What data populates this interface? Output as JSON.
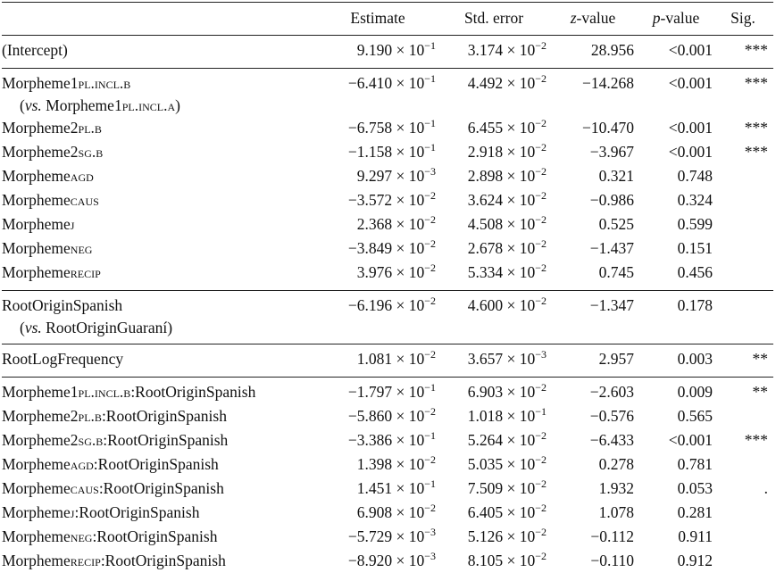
{
  "table": {
    "header": [
      [
        {
          "t": "Estimate"
        }
      ],
      [
        {
          "t": "Std. error"
        }
      ],
      [
        {
          "t": "z",
          "it": true
        },
        {
          "t": "-value"
        }
      ],
      [
        {
          "t": "p",
          "it": true
        },
        {
          "t": "-value"
        }
      ],
      [
        {
          "t": "Sig."
        }
      ]
    ],
    "groups": [
      {
        "rows": [
          {
            "label": [
              {
                "t": "(Intercept)"
              }
            ],
            "est": {
              "b": "9.190 × 10",
              "e": "−1"
            },
            "se": {
              "b": "3.174 × 10",
              "e": "−2"
            },
            "z": "28.956",
            "p": "<0.001",
            "sig": "***"
          }
        ]
      },
      {
        "rows": [
          {
            "label": [
              {
                "t": "Morpheme"
              },
              {
                "t": "1pl.incl.b",
                "sc": true
              }
            ],
            "note": [
              {
                "t": "("
              },
              {
                "t": "vs.",
                "it": true
              },
              {
                "t": " Morpheme"
              },
              {
                "t": "1pl.incl.a",
                "sc": true
              },
              {
                "t": ")"
              }
            ],
            "est": {
              "b": "−6.410 × 10",
              "e": "−1"
            },
            "se": {
              "b": "4.492 × 10",
              "e": "−2"
            },
            "z": "−14.268",
            "p": "<0.001",
            "sig": "***"
          },
          {
            "label": [
              {
                "t": "Morpheme"
              },
              {
                "t": "2pl.b",
                "sc": true
              }
            ],
            "est": {
              "b": "−6.758 × 10",
              "e": "−1"
            },
            "se": {
              "b": "6.455 × 10",
              "e": "−2"
            },
            "z": "−10.470",
            "p": "<0.001",
            "sig": "***"
          },
          {
            "label": [
              {
                "t": "Morpheme"
              },
              {
                "t": "2sg.b",
                "sc": true
              }
            ],
            "est": {
              "b": "−1.158 × 10",
              "e": "−1"
            },
            "se": {
              "b": "2.918 × 10",
              "e": "−2"
            },
            "z": "−3.967",
            "p": "<0.001",
            "sig": "***"
          },
          {
            "label": [
              {
                "t": "Morpheme"
              },
              {
                "t": "agd",
                "sc": true
              }
            ],
            "est": {
              "b": "9.297 × 10",
              "e": "−3"
            },
            "se": {
              "b": "2.898 × 10",
              "e": "−2"
            },
            "z": "0.321",
            "p": "0.748"
          },
          {
            "label": [
              {
                "t": "Morpheme"
              },
              {
                "t": "caus",
                "sc": true
              }
            ],
            "est": {
              "b": "−3.572 × 10",
              "e": "−2"
            },
            "se": {
              "b": "3.624 × 10",
              "e": "−2"
            },
            "z": "−0.986",
            "p": "0.324"
          },
          {
            "label": [
              {
                "t": "Morpheme"
              },
              {
                "t": "j",
                "sc": true
              }
            ],
            "est": {
              "b": "2.368 × 10",
              "e": "−2"
            },
            "se": {
              "b": "4.508 × 10",
              "e": "−2"
            },
            "z": "0.525",
            "p": "0.599"
          },
          {
            "label": [
              {
                "t": "Morpheme"
              },
              {
                "t": "neg",
                "sc": true
              }
            ],
            "est": {
              "b": "−3.849 × 10",
              "e": "−2"
            },
            "se": {
              "b": "2.678 × 10",
              "e": "−2"
            },
            "z": "−1.437",
            "p": "0.151"
          },
          {
            "label": [
              {
                "t": "Morpheme"
              },
              {
                "t": "recip",
                "sc": true
              }
            ],
            "est": {
              "b": "3.976 × 10",
              "e": "−2"
            },
            "se": {
              "b": "5.334 × 10",
              "e": "−2"
            },
            "z": "0.745",
            "p": "0.456"
          }
        ]
      },
      {
        "rows": [
          {
            "label": [
              {
                "t": "RootOriginSpanish"
              }
            ],
            "note": [
              {
                "t": "("
              },
              {
                "t": "vs.",
                "it": true
              },
              {
                "t": " RootOriginGuaraní)"
              }
            ],
            "est": {
              "b": "−6.196 × 10",
              "e": "−2"
            },
            "se": {
              "b": "4.600 × 10",
              "e": "−2"
            },
            "z": "−1.347",
            "p": "0.178"
          }
        ]
      },
      {
        "rows": [
          {
            "label": [
              {
                "t": "RootLogFrequency"
              }
            ],
            "est": {
              "b": "1.081 × 10",
              "e": "−2"
            },
            "se": {
              "b": "3.657 × 10",
              "e": "−3"
            },
            "z": "2.957",
            "p": "0.003",
            "sig": "**"
          }
        ]
      },
      {
        "rows": [
          {
            "label": [
              {
                "t": "Morpheme"
              },
              {
                "t": "1pl.incl.b",
                "sc": true
              },
              {
                "t": ":RootOriginSpanish"
              }
            ],
            "est": {
              "b": "−1.797 × 10",
              "e": "−1"
            },
            "se": {
              "b": "6.903 × 10",
              "e": "−2"
            },
            "z": "−2.603",
            "p": "0.009",
            "sig": "**"
          },
          {
            "label": [
              {
                "t": "Morpheme"
              },
              {
                "t": "2pl.b",
                "sc": true
              },
              {
                "t": ":RootOriginSpanish"
              }
            ],
            "est": {
              "b": "−5.860 × 10",
              "e": "−2"
            },
            "se": {
              "b": "1.018 × 10",
              "e": "−1"
            },
            "z": "−0.576",
            "p": "0.565"
          },
          {
            "label": [
              {
                "t": "Morpheme"
              },
              {
                "t": "2sg.b",
                "sc": true
              },
              {
                "t": ":RootOriginSpanish"
              }
            ],
            "est": {
              "b": "−3.386 × 10",
              "e": "−1"
            },
            "se": {
              "b": "5.264 × 10",
              "e": "−2"
            },
            "z": "−6.433",
            "p": "<0.001",
            "sig": "***"
          },
          {
            "label": [
              {
                "t": "Morpheme"
              },
              {
                "t": "agd",
                "sc": true
              },
              {
                "t": ":RootOriginSpanish"
              }
            ],
            "est": {
              "b": "1.398 × 10",
              "e": "−2"
            },
            "se": {
              "b": "5.035 × 10",
              "e": "−2"
            },
            "z": "0.278",
            "p": "0.781"
          },
          {
            "label": [
              {
                "t": "Morpheme"
              },
              {
                "t": "caus",
                "sc": true
              },
              {
                "t": ":RootOriginSpanish"
              }
            ],
            "est": {
              "b": "1.451 × 10",
              "e": "−1"
            },
            "se": {
              "b": "7.509 × 10",
              "e": "−2"
            },
            "z": "1.932",
            "p": "0.053",
            "sig": "."
          },
          {
            "label": [
              {
                "t": "Morpheme"
              },
              {
                "t": "j",
                "sc": true
              },
              {
                "t": ":RootOriginSpanish"
              }
            ],
            "est": {
              "b": "6.908 × 10",
              "e": "−2"
            },
            "se": {
              "b": "6.405 × 10",
              "e": "−2"
            },
            "z": "1.078",
            "p": "0.281"
          },
          {
            "label": [
              {
                "t": "Morpheme"
              },
              {
                "t": "neg",
                "sc": true
              },
              {
                "t": ":RootOriginSpanish"
              }
            ],
            "est": {
              "b": "−5.729 × 10",
              "e": "−3"
            },
            "se": {
              "b": "5.126 × 10",
              "e": "−2"
            },
            "z": "−0.112",
            "p": "0.911"
          },
          {
            "label": [
              {
                "t": "Morpheme"
              },
              {
                "t": "recip",
                "sc": true
              },
              {
                "t": ":RootOriginSpanish"
              }
            ],
            "est": {
              "b": "−8.920 × 10",
              "e": "−3"
            },
            "se": {
              "b": "8.105 × 10",
              "e": "−2"
            },
            "z": "−0.110",
            "p": "0.912"
          }
        ]
      }
    ]
  }
}
